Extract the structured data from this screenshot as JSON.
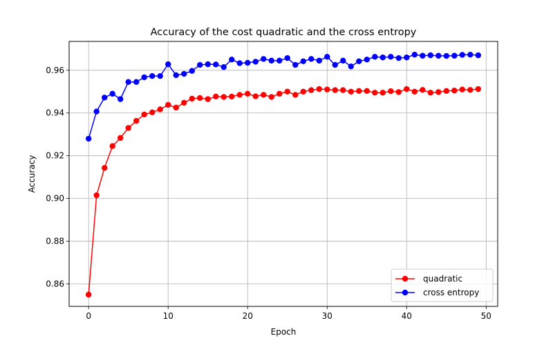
{
  "chart_data": {
    "type": "line",
    "title": "Accuracy of the cost quadratic and the cross entropy",
    "xlabel": "Epoch",
    "ylabel": "Accuracy",
    "xlim": [
      -2.45,
      51.45
    ],
    "ylim": [
      0.8495,
      0.9735
    ],
    "xticks": [
      0,
      10,
      20,
      30,
      40,
      50
    ],
    "yticks": [
      0.86,
      0.88,
      0.9,
      0.92,
      0.94,
      0.96
    ],
    "ytick_labels": [
      "0.86",
      "0.88",
      "0.90",
      "0.92",
      "0.94",
      "0.96"
    ],
    "grid": true,
    "legend_position": "lower-right",
    "x": [
      0,
      1,
      2,
      3,
      4,
      5,
      6,
      7,
      8,
      9,
      10,
      11,
      12,
      13,
      14,
      15,
      16,
      17,
      18,
      19,
      20,
      21,
      22,
      23,
      24,
      25,
      26,
      27,
      28,
      29,
      30,
      31,
      32,
      33,
      34,
      35,
      36,
      37,
      38,
      39,
      40,
      41,
      42,
      43,
      44,
      45,
      46,
      47,
      48,
      49
    ],
    "series": [
      {
        "name": "quadratic",
        "color": "#ff0000",
        "values": [
          0.855,
          0.9015,
          0.9143,
          0.9245,
          0.9283,
          0.933,
          0.9363,
          0.9393,
          0.9403,
          0.9417,
          0.9438,
          0.9425,
          0.9448,
          0.9467,
          0.947,
          0.9465,
          0.9477,
          0.9475,
          0.9477,
          0.9485,
          0.949,
          0.9478,
          0.9485,
          0.9475,
          0.949,
          0.95,
          0.9485,
          0.95,
          0.9507,
          0.9512,
          0.951,
          0.9507,
          0.9507,
          0.95,
          0.9503,
          0.9503,
          0.9495,
          0.9495,
          0.9502,
          0.9498,
          0.9512,
          0.95,
          0.9508,
          0.9495,
          0.9498,
          0.9503,
          0.9505,
          0.951,
          0.9508,
          0.9512
        ]
      },
      {
        "name": "cross entropy",
        "color": "#0000ff",
        "values": [
          0.928,
          0.9407,
          0.9472,
          0.949,
          0.9465,
          0.9545,
          0.9545,
          0.9567,
          0.9573,
          0.9573,
          0.9628,
          0.9577,
          0.9583,
          0.9597,
          0.9625,
          0.9628,
          0.9627,
          0.9615,
          0.965,
          0.9633,
          0.9635,
          0.964,
          0.9653,
          0.9645,
          0.9645,
          0.9657,
          0.9625,
          0.9642,
          0.9653,
          0.9645,
          0.9663,
          0.9625,
          0.9645,
          0.9618,
          0.9642,
          0.965,
          0.9663,
          0.966,
          0.9663,
          0.9657,
          0.966,
          0.9673,
          0.9668,
          0.967,
          0.9668,
          0.9667,
          0.9668,
          0.9672,
          0.9673,
          0.967
        ]
      }
    ]
  }
}
